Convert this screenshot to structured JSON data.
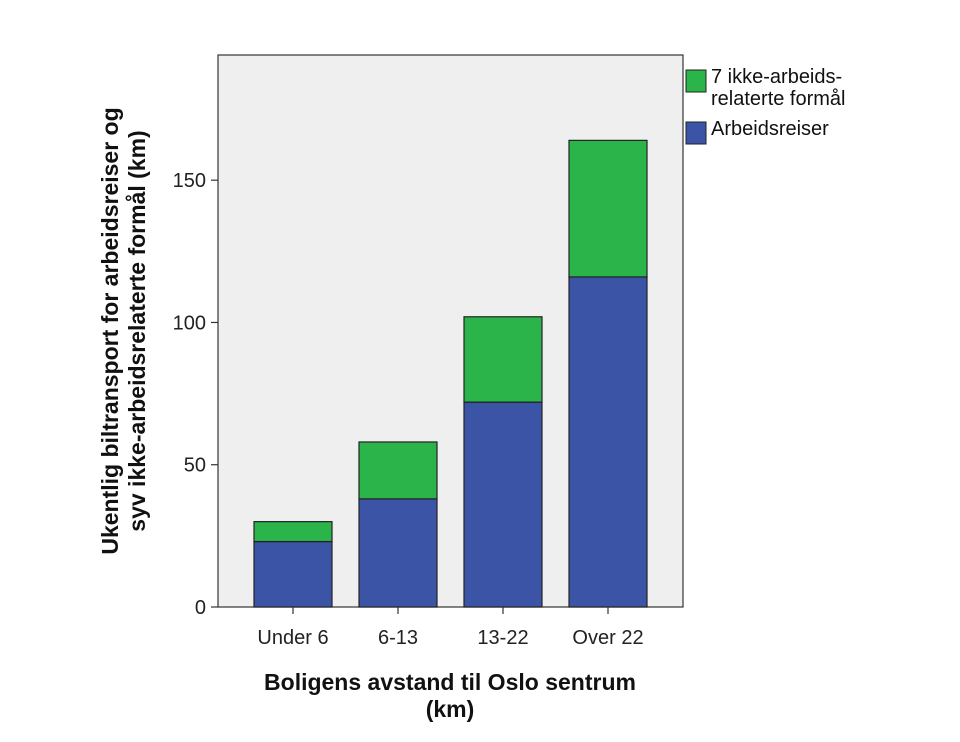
{
  "chart_data": {
    "type": "bar",
    "stacked": true,
    "categories": [
      "Under 6",
      "6-13",
      "13-22",
      "Over 22"
    ],
    "series": [
      {
        "name": "Arbeidsreiser",
        "values": [
          23,
          38,
          72,
          116
        ],
        "color": "#3b54a6"
      },
      {
        "name": "7 ikke-arbeids-relaterte formål",
        "values": [
          7,
          20,
          30,
          48
        ],
        "color": "#2bb44a"
      }
    ],
    "legend": [
      {
        "lines": [
          "7 ikke-arbeids-",
          "relaterte formål"
        ],
        "color": "#2bb44a"
      },
      {
        "lines": [
          "Arbeidsreiser"
        ],
        "color": "#3b54a6"
      }
    ],
    "legend_position": "right",
    "xlabel_lines": [
      "Boligens avstand til Oslo sentrum",
      "(km)"
    ],
    "ylabel_lines": [
      "Ukentlig biltransport for arbeidsreiser og",
      "syv ikke-arbeidsrelaterte formål (km)"
    ],
    "yticks": [
      0,
      50,
      100,
      150
    ],
    "ylim": [
      0,
      194
    ],
    "grid": false,
    "plot_background": "#efefef"
  }
}
